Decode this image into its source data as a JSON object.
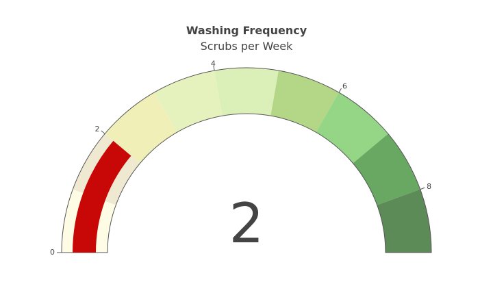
{
  "chart_data": {
    "type": "gauge",
    "title": "Washing Frequency",
    "subtitle": "Scrubs per Week",
    "value": 2,
    "value_display": "2",
    "range": [
      0,
      9
    ],
    "ticks": [
      {
        "value": 0,
        "label": "0"
      },
      {
        "value": 2,
        "label": "2"
      },
      {
        "value": 4,
        "label": "4"
      },
      {
        "value": 6,
        "label": "6"
      },
      {
        "value": 8,
        "label": "8"
      }
    ],
    "bands": [
      {
        "from": 0,
        "to": 1,
        "color": "#fffce6"
      },
      {
        "from": 1,
        "to": 2,
        "color": "#f0e9d2"
      },
      {
        "from": 2,
        "to": 3,
        "color": "#f1efb8"
      },
      {
        "from": 3,
        "to": 4,
        "color": "#e6f2be"
      },
      {
        "from": 4,
        "to": 5,
        "color": "#dbf0b8"
      },
      {
        "from": 5,
        "to": 6,
        "color": "#b4d687"
      },
      {
        "from": 6,
        "to": 7,
        "color": "#94d686"
      },
      {
        "from": 7,
        "to": 8,
        "color": "#68a862"
      },
      {
        "from": 8,
        "to": 9,
        "color": "#5c8b58"
      }
    ],
    "inner_band": {
      "from": 0,
      "to": 1,
      "color": "#fffce6"
    },
    "indicator_color": "#c80806",
    "outline_color": "#555555"
  }
}
